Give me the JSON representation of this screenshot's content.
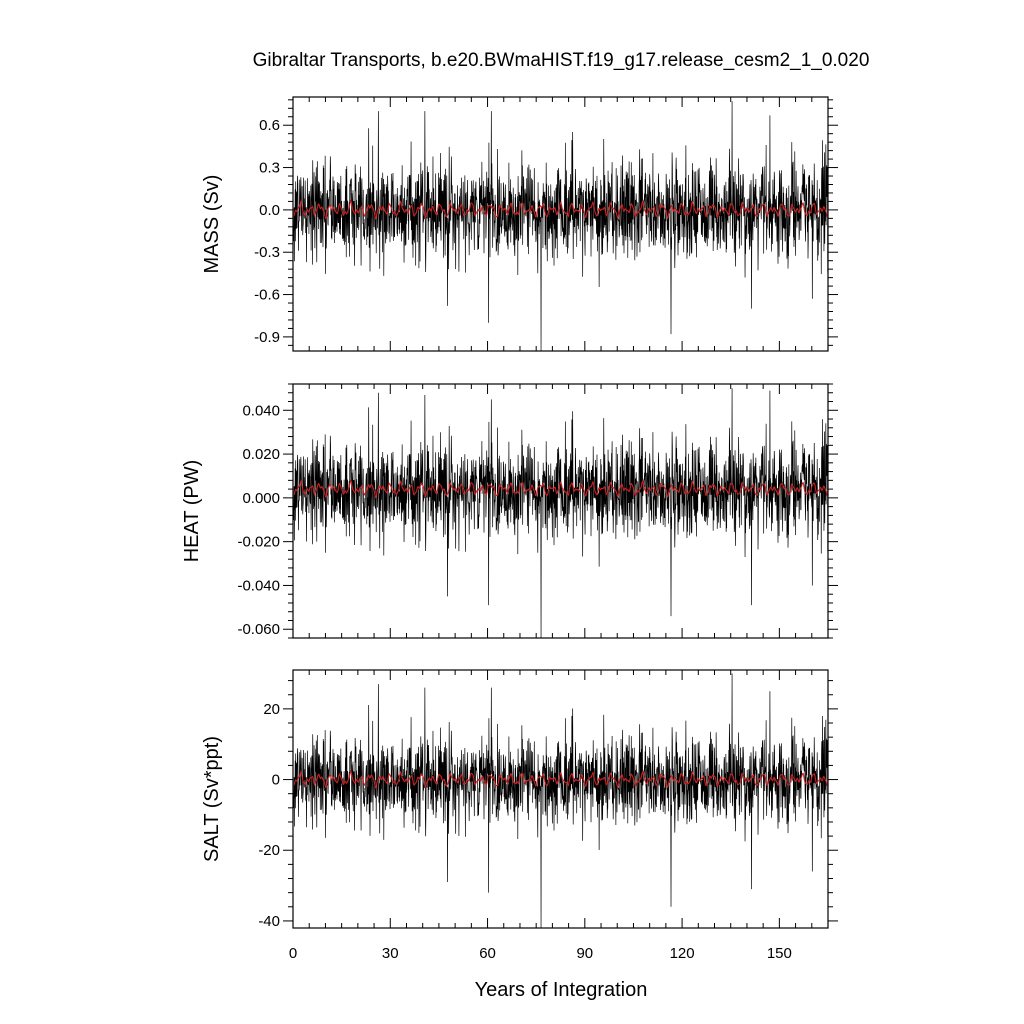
{
  "title": "Gibraltar Transports, b.e20.BWmaHIST.f19_g17.release_cesm2_1_0.020",
  "xlabel": "Years of Integration",
  "colors": {
    "raw": "#000000",
    "smoothed": "#cc2222",
    "axis": "#000000",
    "background": "#ffffff"
  },
  "chart_data": [
    {
      "type": "line",
      "name": "mass",
      "ylabel": "MASS (Sv)",
      "xlim": [
        0,
        165
      ],
      "ylim": [
        -1.0,
        0.8
      ],
      "x_ticks": [
        0,
        30,
        60,
        90,
        120,
        150
      ],
      "y_ticks": [
        -0.9,
        -0.6,
        -0.3,
        0.0,
        0.3,
        0.6
      ],
      "y_tick_labels": [
        "-0.9",
        "-0.6",
        "-0.3",
        "0.0",
        "0.3",
        "0.6"
      ],
      "noise_sd": 0.17,
      "smooth_amp": 0.05,
      "spikes": [
        {
          "x": 76.5,
          "y": -1.0
        },
        {
          "x": 60.3,
          "y": -0.8
        },
        {
          "x": 116.6,
          "y": -0.88
        },
        {
          "x": 135.4,
          "y": 0.77
        },
        {
          "x": 26.3,
          "y": 0.7
        },
        {
          "x": 40.7,
          "y": 0.7
        },
        {
          "x": 61.2,
          "y": 0.7
        },
        {
          "x": 147.1,
          "y": 0.67
        },
        {
          "x": 160.2,
          "y": -0.63
        },
        {
          "x": 141.4,
          "y": -0.7
        },
        {
          "x": 47.7,
          "y": -0.68
        }
      ],
      "series": [
        {
          "name": "",
          "role": "raw",
          "color": "#000000",
          "x": [],
          "y": []
        },
        {
          "name": "",
          "role": "smoothed",
          "color": "#cc2222",
          "x": [],
          "y": []
        }
      ]
    },
    {
      "type": "line",
      "name": "heat",
      "ylabel": "HEAT (PW)",
      "xlim": [
        0,
        165
      ],
      "ylim": [
        -0.064,
        0.052
      ],
      "x_ticks": [
        0,
        30,
        60,
        90,
        120,
        150
      ],
      "y_ticks": [
        -0.06,
        -0.04,
        -0.02,
        0.0,
        0.02,
        0.04
      ],
      "y_tick_labels": [
        "-0.060",
        "-0.040",
        "-0.020",
        "0.000",
        "0.020",
        "0.040"
      ],
      "noise_sd": 0.011,
      "smooth_amp": 0.003,
      "y_offset": 0.004,
      "spikes": [
        {
          "x": 76.5,
          "y": -0.064
        },
        {
          "x": 60.3,
          "y": -0.049
        },
        {
          "x": 116.6,
          "y": -0.054
        },
        {
          "x": 135.4,
          "y": 0.05
        },
        {
          "x": 26.3,
          "y": 0.048
        },
        {
          "x": 40.7,
          "y": 0.047
        },
        {
          "x": 61.2,
          "y": 0.045
        },
        {
          "x": 147.1,
          "y": 0.049
        },
        {
          "x": 160.2,
          "y": -0.04
        },
        {
          "x": 141.4,
          "y": -0.049
        },
        {
          "x": 47.7,
          "y": -0.045
        }
      ],
      "series": [
        {
          "name": "",
          "role": "raw",
          "color": "#000000",
          "x": [],
          "y": []
        },
        {
          "name": "",
          "role": "smoothed",
          "color": "#cc2222",
          "x": [],
          "y": []
        }
      ]
    },
    {
      "type": "line",
      "name": "salt",
      "ylabel": "SALT (Sv*ppt)",
      "xlim": [
        0,
        165
      ],
      "ylim": [
        -42,
        31
      ],
      "x_ticks": [
        0,
        30,
        60,
        90,
        120,
        150
      ],
      "y_ticks": [
        -40,
        -20,
        0,
        20
      ],
      "y_tick_labels": [
        "-40",
        "-20",
        "0",
        "20"
      ],
      "noise_sd": 6.2,
      "smooth_amp": 1.8,
      "spikes": [
        {
          "x": 76.5,
          "y": -42
        },
        {
          "x": 60.3,
          "y": -32
        },
        {
          "x": 116.6,
          "y": -36
        },
        {
          "x": 135.4,
          "y": 30
        },
        {
          "x": 26.3,
          "y": 27
        },
        {
          "x": 40.7,
          "y": 26
        },
        {
          "x": 61.2,
          "y": 26
        },
        {
          "x": 147.1,
          "y": 25
        },
        {
          "x": 160.2,
          "y": -26
        },
        {
          "x": 141.4,
          "y": -31
        },
        {
          "x": 47.7,
          "y": -29
        }
      ],
      "series": [
        {
          "name": "",
          "role": "raw",
          "color": "#000000",
          "x": [],
          "y": []
        },
        {
          "name": "",
          "role": "smoothed",
          "color": "#cc2222",
          "x": [],
          "y": []
        }
      ]
    }
  ]
}
